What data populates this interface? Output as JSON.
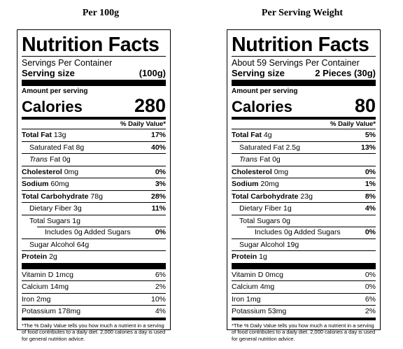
{
  "left": {
    "heading": "Per 100g",
    "title": "Nutrition Facts",
    "servings_per_container": "Servings Per Container",
    "serving_size_label": "Serving size",
    "serving_size_value": "(100g)",
    "amount_per_serving": "Amount per serving",
    "calories_label": "Calories",
    "calories_value": "280",
    "daily_value_header": "% Daily Value*",
    "rows": {
      "total_fat": {
        "name": "Total Fat",
        "amount": "13g",
        "pct": "17%"
      },
      "sat_fat": {
        "name": "Saturated Fat",
        "amount": "8g",
        "pct": "40%"
      },
      "trans_fat": {
        "name": "Trans",
        "suffix": "Fat 0g"
      },
      "cholesterol": {
        "name": "Cholesterol",
        "amount": "0mg",
        "pct": "0%"
      },
      "sodium": {
        "name": "Sodium",
        "amount": "60mg",
        "pct": "3%"
      },
      "carbs": {
        "name": "Total Carbohydrate",
        "amount": "78g",
        "pct": "28%"
      },
      "fiber": {
        "name": "Dietary Fiber",
        "amount": "3g",
        "pct": "11%"
      },
      "sugars": {
        "text": "Total Sugars 1g"
      },
      "added_sugars": {
        "text": "Includes 0g Added Sugars",
        "pct": "0%"
      },
      "sugar_alcohol": {
        "text": "Sugar Alcohol 64g"
      },
      "protein": {
        "name": "Protein",
        "amount": "2g"
      },
      "vit_d": {
        "text": "Vitamin D 1mcg",
        "pct": "6%"
      },
      "calcium": {
        "text": "Calcium 14mg",
        "pct": "2%"
      },
      "iron": {
        "text": "Iron 2mg",
        "pct": "10%"
      },
      "potassium": {
        "text": "Potassium 178mg",
        "pct": "4%"
      }
    },
    "footnote": "*The % Daily Value tells you how much a nutrient in a serving of food contributes to a daily diet. 2,000 calories a day is used for general nutrition advice."
  },
  "right": {
    "heading": "Per Serving Weight",
    "title": "Nutrition Facts",
    "servings_per_container": "About 59 Servings Per Container",
    "serving_size_label": "Serving size",
    "serving_size_value": "2 Pieces (30g)",
    "amount_per_serving": "Amount per serving",
    "calories_label": "Calories",
    "calories_value": "80",
    "daily_value_header": "% Daily Value*",
    "rows": {
      "total_fat": {
        "name": "Total Fat",
        "amount": "4g",
        "pct": "5%"
      },
      "sat_fat": {
        "name": "Saturated Fat",
        "amount": "2.5g",
        "pct": "13%"
      },
      "trans_fat": {
        "name": "Trans",
        "suffix": "Fat 0g"
      },
      "cholesterol": {
        "name": "Cholesterol",
        "amount": "0mg",
        "pct": "0%"
      },
      "sodium": {
        "name": "Sodium",
        "amount": "20mg",
        "pct": "1%"
      },
      "carbs": {
        "name": "Total Carbohydrate",
        "amount": "23g",
        "pct": "8%"
      },
      "fiber": {
        "name": "Dietary Fiber",
        "amount": "1g",
        "pct": "4%"
      },
      "sugars": {
        "text": "Total Sugars 0g"
      },
      "added_sugars": {
        "text": "Includes 0g Added Sugars",
        "pct": "0%"
      },
      "sugar_alcohol": {
        "text": "Sugar Alcohol 19g"
      },
      "protein": {
        "name": "Protein",
        "amount": "1g"
      },
      "vit_d": {
        "text": "Vitamin D 0mcg",
        "pct": "0%"
      },
      "calcium": {
        "text": "Calcium 4mg",
        "pct": "0%"
      },
      "iron": {
        "text": "Iron 1mg",
        "pct": "6%"
      },
      "potassium": {
        "text": "Potassium 53mg",
        "pct": "2%"
      }
    },
    "footnote": "*The % Daily Value tells you how much a nutrient in a serving of food contributes to a daily diet. 2,000 calories a day is used for general nutrition advice."
  }
}
